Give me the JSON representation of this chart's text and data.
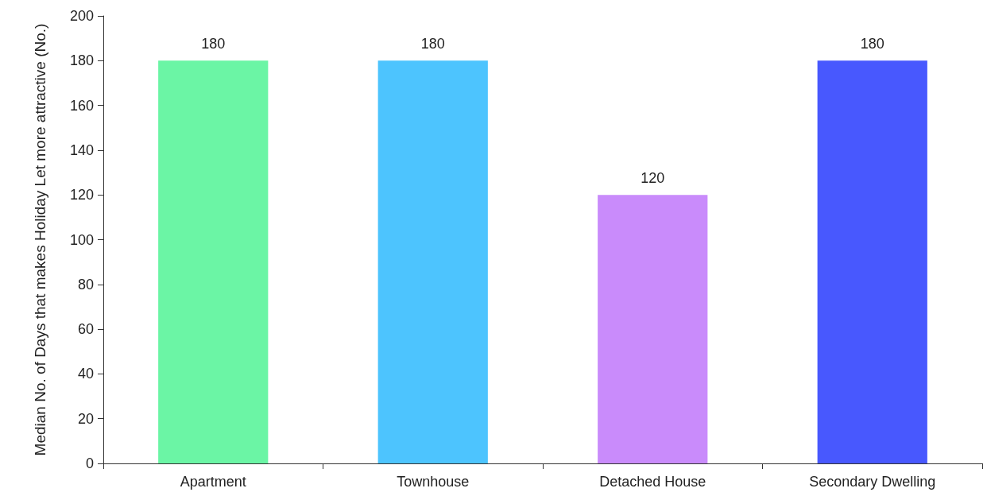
{
  "chart_data": {
    "type": "bar",
    "ylabel": "Median No. of Days that makes Holiday Let more attractive (No.)",
    "categories": [
      "Apartment",
      "Townhouse",
      "Detached House",
      "Secondary Dwelling"
    ],
    "values": [
      180,
      180,
      120,
      180
    ],
    "colors": [
      "#6bf5a5",
      "#4dc4fe",
      "#c98bfb",
      "#4858fe"
    ],
    "ylim": [
      0,
      200
    ],
    "yticks": [
      0,
      20,
      40,
      60,
      80,
      100,
      120,
      140,
      160,
      180,
      200
    ],
    "grid": false,
    "data_labels": true
  }
}
